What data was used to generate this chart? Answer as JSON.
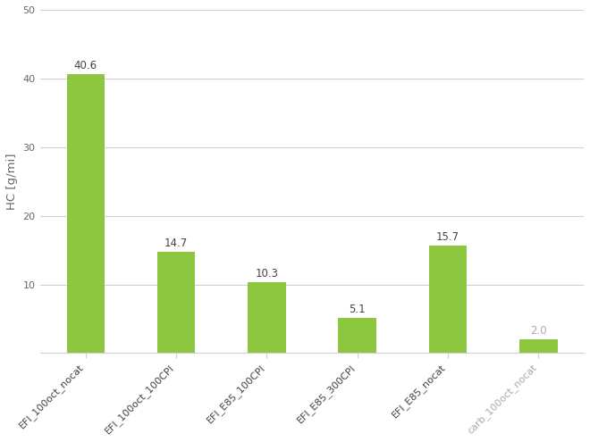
{
  "categories": [
    "EFI_100oct_nocat",
    "EFI_100oct_100CPI",
    "EFI_E85_100CPI",
    "EFI_E85_300CPI",
    "EFI_E85_nocat",
    "carb_100oct_nocat"
  ],
  "values": [
    40.6,
    14.7,
    10.3,
    5.1,
    15.7,
    2.0
  ],
  "bar_color": "#8DC63F",
  "ylabel": "HC [g/mi]",
  "ylim": [
    0,
    50
  ],
  "yticks": [
    0,
    10,
    20,
    30,
    40,
    50
  ],
  "label_color_default": "#444444",
  "label_color_last": "#aaaaaa",
  "background_color": "#ffffff",
  "grid_color": "#d0d0d0",
  "bar_width": 0.42,
  "label_fontsize": 8.5,
  "tick_label_fontsize": 8.0,
  "ylabel_fontsize": 9.5
}
